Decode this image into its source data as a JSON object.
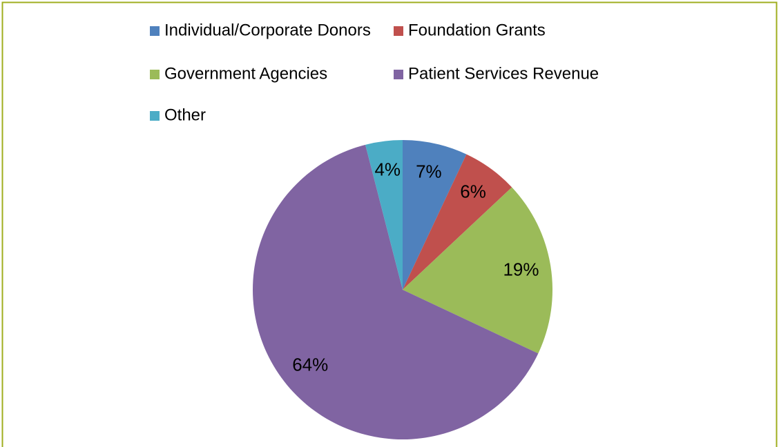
{
  "chart_data": {
    "type": "pie",
    "categories": [
      "Individual/Corporate Donors",
      "Foundation Grants",
      "Government Agencies",
      "Patient Services Revenue",
      "Other"
    ],
    "values": [
      7,
      6,
      19,
      64,
      4
    ],
    "value_labels": [
      "7%",
      "6%",
      "19%",
      "64%",
      "4%"
    ],
    "colors": [
      "#4f81bd",
      "#c0504d",
      "#9bbb59",
      "#8064a2",
      "#4bacc6"
    ],
    "legend": "top"
  }
}
